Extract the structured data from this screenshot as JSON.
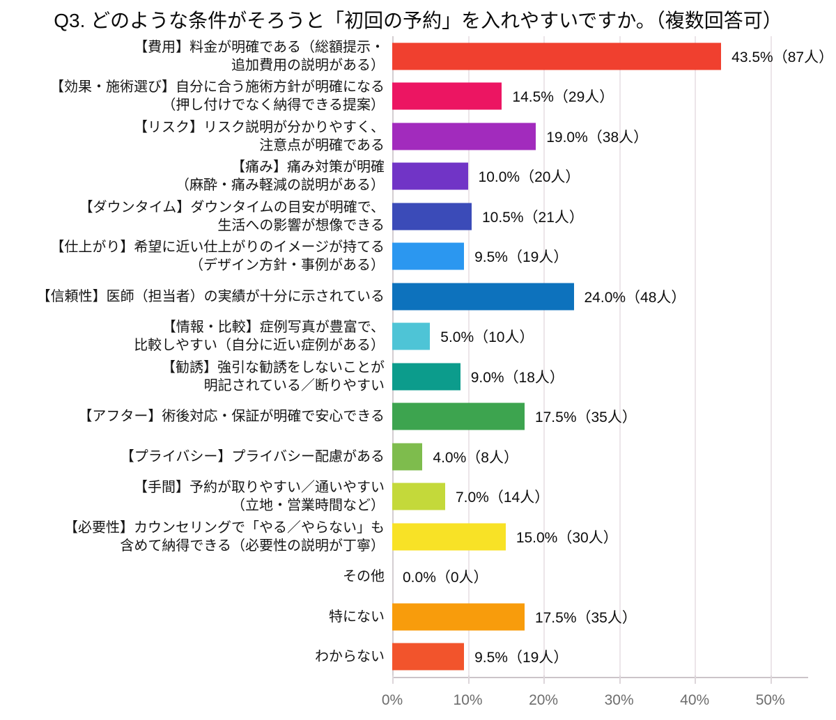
{
  "title": "Q3. どのような条件がそろうと「初回の予約」を入れやすいですか。（複数回答可）",
  "chart_data": {
    "type": "bar",
    "orientation": "horizontal",
    "title": "Q3. どのような条件がそろうと「初回の予約」を入れやすいですか。（複数回答可）",
    "xlabel": "",
    "ylabel": "",
    "xlim": [
      0,
      55
    ],
    "grid": true,
    "x_tick_values": [
      0,
      10,
      20,
      30,
      40,
      50
    ],
    "x_tick_labels": [
      "0%",
      "10%",
      "20%",
      "30%",
      "40%",
      "50%"
    ],
    "items": [
      {
        "category": "【費用】料金が明確である（総額提示・追加費用の説明がある）",
        "label_lines": [
          "【費用】料金が明確である（総額提示・",
          "追加費用の説明がある）"
        ],
        "percent": 43.5,
        "count": 87,
        "value_label": "43.5%（87人）",
        "color": "#f0402f"
      },
      {
        "category": "【効果・施術選び】自分に合う施術方針が明確になる（押し付けでなく納得できる提案）",
        "label_lines": [
          "【効果・施術選び】自分に合う施術方針が明確になる",
          "（押し付けでなく納得できる提案）"
        ],
        "percent": 14.5,
        "count": 29,
        "value_label": "14.5%（29人）",
        "color": "#ec1562"
      },
      {
        "category": "【リスク】リスク説明が分かりやすく、注意点が明確である",
        "label_lines": [
          "【リスク】リスク説明が分かりやすく、",
          "注意点が明確である"
        ],
        "percent": 19.0,
        "count": 38,
        "value_label": "19.0%（38人）",
        "color": "#a22bbd"
      },
      {
        "category": "【痛み】痛み対策が明確（麻酔・痛み軽減の説明がある）",
        "label_lines": [
          "【痛み】痛み対策が明確",
          "（麻酔・痛み軽減の説明がある）"
        ],
        "percent": 10.0,
        "count": 20,
        "value_label": "10.0%（20人）",
        "color": "#7134c6"
      },
      {
        "category": "【ダウンタイム】ダウンタイムの目安が明確で、生活への影響が想像できる",
        "label_lines": [
          "【ダウンタイム】ダウンタイムの目安が明確で、",
          "生活への影響が想像できる"
        ],
        "percent": 10.5,
        "count": 21,
        "value_label": "10.5%（21人）",
        "color": "#3b4bb8"
      },
      {
        "category": "【仕上がり】希望に近い仕上がりのイメージが持てる（デザイン方針・事例がある）",
        "label_lines": [
          "【仕上がり】希望に近い仕上がりのイメージが持てる",
          "（デザイン方針・事例がある）"
        ],
        "percent": 9.5,
        "count": 19,
        "value_label": "9.5%（19人）",
        "color": "#2b97f0"
      },
      {
        "category": "【信頼性】医師（担当者）の実績が十分に示されている",
        "label_lines": [
          "【信頼性】医師（担当者）の実績が十分に示されている"
        ],
        "percent": 24.0,
        "count": 48,
        "value_label": "24.0%（48人）",
        "color": "#0d72bd"
      },
      {
        "category": "【情報・比較】症例写真が豊富で、比較しやすい（自分に近い症例がある）",
        "label_lines": [
          "【情報・比較】症例写真が豊富で、",
          "比較しやすい（自分に近い症例がある）"
        ],
        "percent": 5.0,
        "count": 10,
        "value_label": "5.0%（10人）",
        "color": "#4ec4d6"
      },
      {
        "category": "【勧誘】強引な勧誘をしないことが明記されている／断りやすい",
        "label_lines": [
          "【勧誘】強引な勧誘をしないことが",
          "明記されている／断りやすい"
        ],
        "percent": 9.0,
        "count": 18,
        "value_label": "9.0%（18人）",
        "color": "#0c9c8c"
      },
      {
        "category": "【アフター】術後対応・保証が明確で安心できる",
        "label_lines": [
          "【アフター】術後対応・保証が明確で安心できる"
        ],
        "percent": 17.5,
        "count": 35,
        "value_label": "17.5%（35人）",
        "color": "#3da44f"
      },
      {
        "category": "【プライバシー】プライバシー配慮がある",
        "label_lines": [
          "【プライバシー】プライバシー配慮がある"
        ],
        "percent": 4.0,
        "count": 8,
        "value_label": "4.0%（8人）",
        "color": "#7ebc4d"
      },
      {
        "category": "【手間】予約が取りやすい／通いやすい（立地・営業時間など）",
        "label_lines": [
          "【手間】予約が取りやすい／通いやすい",
          "（立地・営業時間など）"
        ],
        "percent": 7.0,
        "count": 14,
        "value_label": "7.0%（14人）",
        "color": "#c4d93a"
      },
      {
        "category": "【必要性】カウンセリングで「やる／やらない」も含めて納得できる（必要性の説明が丁寧）",
        "label_lines": [
          "【必要性】カウンセリングで「やる／やらない」も",
          "含めて納得できる（必要性の説明が丁寧）"
        ],
        "percent": 15.0,
        "count": 30,
        "value_label": "15.0%（30人）",
        "color": "#f8e226"
      },
      {
        "category": "その他",
        "label_lines": [
          "その他"
        ],
        "percent": 0.0,
        "count": 0,
        "value_label": "0.0%（0人）",
        "color": null
      },
      {
        "category": "特にない",
        "label_lines": [
          "特にない"
        ],
        "percent": 17.5,
        "count": 35,
        "value_label": "17.5%（35人）",
        "color": "#f89c0c"
      },
      {
        "category": "わからない",
        "label_lines": [
          "わからない"
        ],
        "percent": 9.5,
        "count": 19,
        "value_label": "9.5%（19人）",
        "color": "#f2542c"
      }
    ]
  }
}
